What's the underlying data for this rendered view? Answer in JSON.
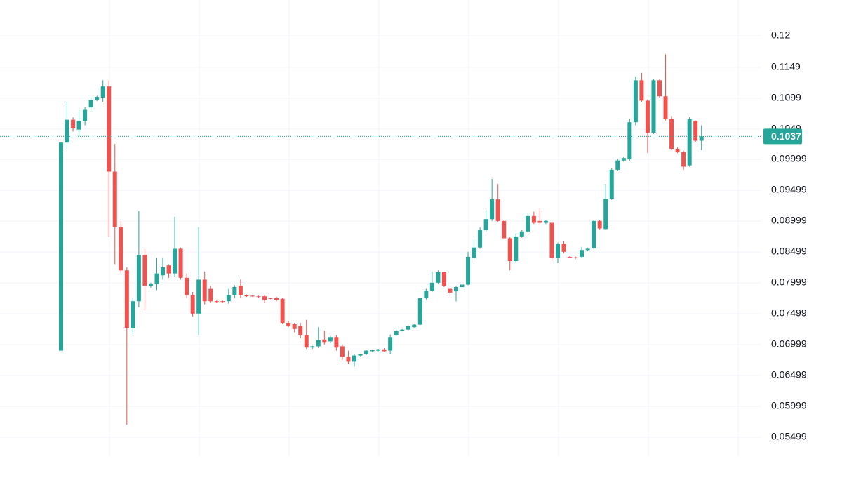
{
  "chart_data": {
    "type": "candlestick",
    "up_color": "#26a69a",
    "down_color": "#ef5350",
    "ylim": [
      0.0519,
      0.1258
    ],
    "yticks": [
      0.12,
      0.1149,
      0.1099,
      0.1049,
      0.09999,
      0.09499,
      0.08999,
      0.08499,
      0.07999,
      0.07499,
      0.06999,
      0.06499,
      0.05999,
      0.05499
    ],
    "grid": true,
    "last_price": 0.1037,
    "open": [
      0.069,
      0.1027,
      0.1064,
      0.1048,
      0.1062,
      0.1084,
      0.1096,
      0.11,
      0.1118,
      0.098,
      0.089,
      0.082,
      0.0727,
      0.077,
      0.0845,
      0.0795,
      0.0798,
      0.0812,
      0.0828,
      0.0815,
      0.0855,
      0.0808,
      0.078,
      0.075,
      0.0805,
      0.079,
      0.077,
      0.077,
      0.077,
      0.078,
      0.0795,
      0.078,
      0.0779,
      0.0778,
      0.0778,
      0.0775,
      0.0776,
      0.0774,
      0.0735,
      0.0733,
      0.073,
      0.0715,
      0.0695,
      0.0697,
      0.0708,
      0.0705,
      0.0712,
      0.0697,
      0.068,
      0.0672,
      0.0682,
      0.0684,
      0.0689,
      0.069,
      0.0692,
      0.069,
      0.0715,
      0.0722,
      0.0724,
      0.0728,
      0.0732,
      0.0775,
      0.0787,
      0.08,
      0.0817,
      0.079,
      0.0786,
      0.0793,
      0.0797,
      0.084,
      0.0857,
      0.0885,
      0.0903,
      0.0935,
      0.09,
      0.0872,
      0.0835,
      0.0875,
      0.0883,
      0.0908,
      0.09,
      0.0897,
      0.0897,
      0.084,
      0.0863,
      0.0842,
      0.0841,
      0.0842,
      0.0853,
      0.0856,
      0.09,
      0.0887,
      0.0936,
      0.0983,
      0.0998,
      0.1,
      0.106,
      0.1128,
      0.1095,
      0.1043,
      0.1128,
      0.1102,
      0.1065,
      0.1017,
      0.1012,
      0.099,
      0.1062,
      0.103
    ],
    "high": [
      0.1027,
      0.1093,
      0.1068,
      0.108,
      0.1085,
      0.11,
      0.1103,
      0.1128,
      0.1128,
      0.1025,
      0.09,
      0.0825,
      0.0775,
      0.0916,
      0.0855,
      0.08,
      0.084,
      0.084,
      0.083,
      0.0907,
      0.0857,
      0.0815,
      0.0785,
      0.089,
      0.0818,
      0.0795,
      0.0771,
      0.0771,
      0.079,
      0.0796,
      0.0805,
      0.0781,
      0.078,
      0.0779,
      0.078,
      0.0776,
      0.0777,
      0.0776,
      0.0738,
      0.0735,
      0.0735,
      0.074,
      0.0698,
      0.0728,
      0.0722,
      0.0714,
      0.0715,
      0.07,
      0.069,
      0.0684,
      0.0685,
      0.0691,
      0.0692,
      0.0693,
      0.0694,
      0.0716,
      0.0724,
      0.0725,
      0.0731,
      0.0733,
      0.0776,
      0.079,
      0.0818,
      0.082,
      0.0818,
      0.0792,
      0.0795,
      0.0799,
      0.085,
      0.087,
      0.089,
      0.0918,
      0.0968,
      0.096,
      0.0902,
      0.0874,
      0.088,
      0.0885,
      0.0912,
      0.0915,
      0.092,
      0.0902,
      0.0899,
      0.0865,
      0.0867,
      0.0843,
      0.0842,
      0.0858,
      0.0857,
      0.0902,
      0.0902,
      0.096,
      0.0985,
      0.1,
      0.1004,
      0.1065,
      0.1134,
      0.114,
      0.1097,
      0.113,
      0.113,
      0.117,
      0.107,
      0.1019,
      0.1014,
      0.1068,
      0.1063,
      0.1055
    ],
    "low": [
      0.069,
      0.1017,
      0.1045,
      0.1037,
      0.1055,
      0.108,
      0.1094,
      0.1093,
      0.0874,
      0.083,
      0.0815,
      0.057,
      0.0717,
      0.076,
      0.0755,
      0.0792,
      0.0788,
      0.0805,
      0.0808,
      0.081,
      0.0805,
      0.0775,
      0.0745,
      0.0715,
      0.0765,
      0.0768,
      0.0768,
      0.0768,
      0.0766,
      0.0775,
      0.0775,
      0.0777,
      0.0777,
      0.0776,
      0.0768,
      0.0773,
      0.077,
      0.0733,
      0.0728,
      0.072,
      0.071,
      0.0693,
      0.0693,
      0.0694,
      0.07,
      0.0703,
      0.069,
      0.0675,
      0.0668,
      0.0664,
      0.0681,
      0.0683,
      0.0688,
      0.0689,
      0.0688,
      0.0685,
      0.0713,
      0.0721,
      0.0723,
      0.0727,
      0.0731,
      0.0773,
      0.0785,
      0.0798,
      0.0793,
      0.078,
      0.077,
      0.0791,
      0.0796,
      0.0838,
      0.0855,
      0.0883,
      0.09,
      0.0898,
      0.087,
      0.082,
      0.0833,
      0.0873,
      0.0881,
      0.0895,
      0.0895,
      0.0895,
      0.0835,
      0.0832,
      0.0848,
      0.084,
      0.0839,
      0.084,
      0.0851,
      0.0854,
      0.0886,
      0.0886,
      0.0934,
      0.0981,
      0.0996,
      0.0998,
      0.1055,
      0.1093,
      0.101,
      0.1041,
      0.11,
      0.1063,
      0.1015,
      0.101,
      0.0983,
      0.0988,
      0.1028,
      0.1015
    ],
    "close": [
      0.1027,
      0.1064,
      0.105,
      0.1062,
      0.108,
      0.1096,
      0.1101,
      0.1118,
      0.098,
      0.089,
      0.082,
      0.0727,
      0.077,
      0.0845,
      0.0795,
      0.0798,
      0.0815,
      0.0825,
      0.0815,
      0.0855,
      0.0808,
      0.078,
      0.075,
      0.0805,
      0.077,
      0.077,
      0.0769,
      0.0769,
      0.078,
      0.0793,
      0.078,
      0.0778,
      0.0778,
      0.0777,
      0.0772,
      0.0774,
      0.0772,
      0.0735,
      0.073,
      0.0725,
      0.0715,
      0.0695,
      0.0697,
      0.0707,
      0.0704,
      0.0712,
      0.0695,
      0.068,
      0.0672,
      0.0682,
      0.0684,
      0.069,
      0.0691,
      0.0692,
      0.0689,
      0.0712,
      0.0722,
      0.0724,
      0.073,
      0.0732,
      0.0775,
      0.0787,
      0.08,
      0.0817,
      0.0795,
      0.0784,
      0.0793,
      0.0797,
      0.0842,
      0.0857,
      0.0885,
      0.0903,
      0.0935,
      0.09,
      0.0872,
      0.0835,
      0.0875,
      0.0883,
      0.0908,
      0.0897,
      0.0897,
      0.09,
      0.084,
      0.0863,
      0.085,
      0.0841,
      0.084,
      0.0853,
      0.0855,
      0.09,
      0.0888,
      0.0936,
      0.0983,
      0.0998,
      0.1002,
      0.106,
      0.1128,
      0.1095,
      0.1043,
      0.1128,
      0.1102,
      0.1065,
      0.1017,
      0.1012,
      0.0988,
      0.1065,
      0.103,
      0.1037
    ]
  }
}
